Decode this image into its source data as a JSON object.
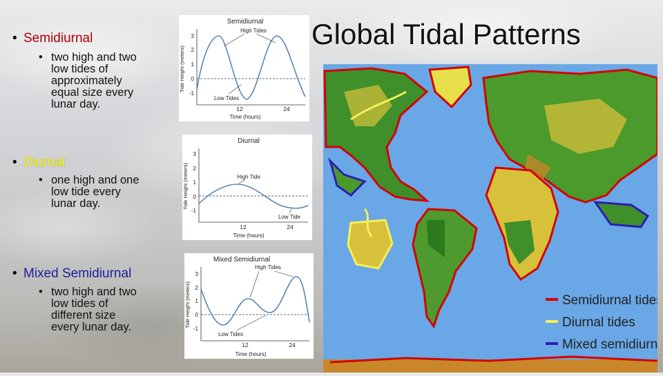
{
  "slide": {
    "title": "Global Tidal Patterns"
  },
  "bullets": [
    {
      "heading": "Semidiurnal",
      "sub": [
        "two high and two",
        "low tides of",
        "approximately",
        "equal size every",
        "lunar day."
      ]
    },
    {
      "heading": "Diurnal",
      "sub": [
        "one high and one",
        "low tide every",
        "lunar day."
      ]
    },
    {
      "heading": "Mixed Semidiurnal",
      "sub": [
        "two high and two",
        "low tides of",
        "different size",
        "every lunar day."
      ]
    }
  ],
  "graphs": {
    "semidiurnal": {
      "title": "Semidiurnal",
      "high_label": "High Tides",
      "low_label": "Low Tides",
      "ylabel": "Tide Height (meters)",
      "xlabel": "Time (hours)",
      "yticks": [
        "3",
        "2",
        "1",
        "0",
        "-1"
      ],
      "xticks": [
        "12",
        "24"
      ]
    },
    "diurnal": {
      "title": "Diurnal",
      "high_label": "High Tide",
      "low_label": "Low Tide",
      "ylabel": "Tide Height (meters)",
      "xlabel": "Time (hours)",
      "yticks": [
        "3",
        "2",
        "1",
        "0",
        "-1"
      ],
      "xticks": [
        "12",
        "24"
      ]
    },
    "mixed": {
      "title": "Mixed Semidiurnal",
      "high_label": "High Tides",
      "low_label": "Low Tides",
      "ylabel": "Tide Height (meters)",
      "xlabel": "Time (hours)",
      "yticks": [
        "3",
        "2",
        "1",
        "0",
        "-1"
      ],
      "xticks": [
        "12",
        "24"
      ]
    }
  },
  "legend": [
    {
      "label": "Semidiurnal tides",
      "color": "#d40000"
    },
    {
      "label": "Diurnal tides",
      "color": "#f5f05a"
    },
    {
      "label": "Mixed semidiurnal tides",
      "color": "#2a1fb0"
    }
  ],
  "colors": {
    "semidiurnal_heading": "#b00000",
    "diurnal_heading": "#ffff00",
    "mixed_heading": "#1d1d9a",
    "ocean": "#6aa7e6",
    "curve": "#5585b5"
  }
}
